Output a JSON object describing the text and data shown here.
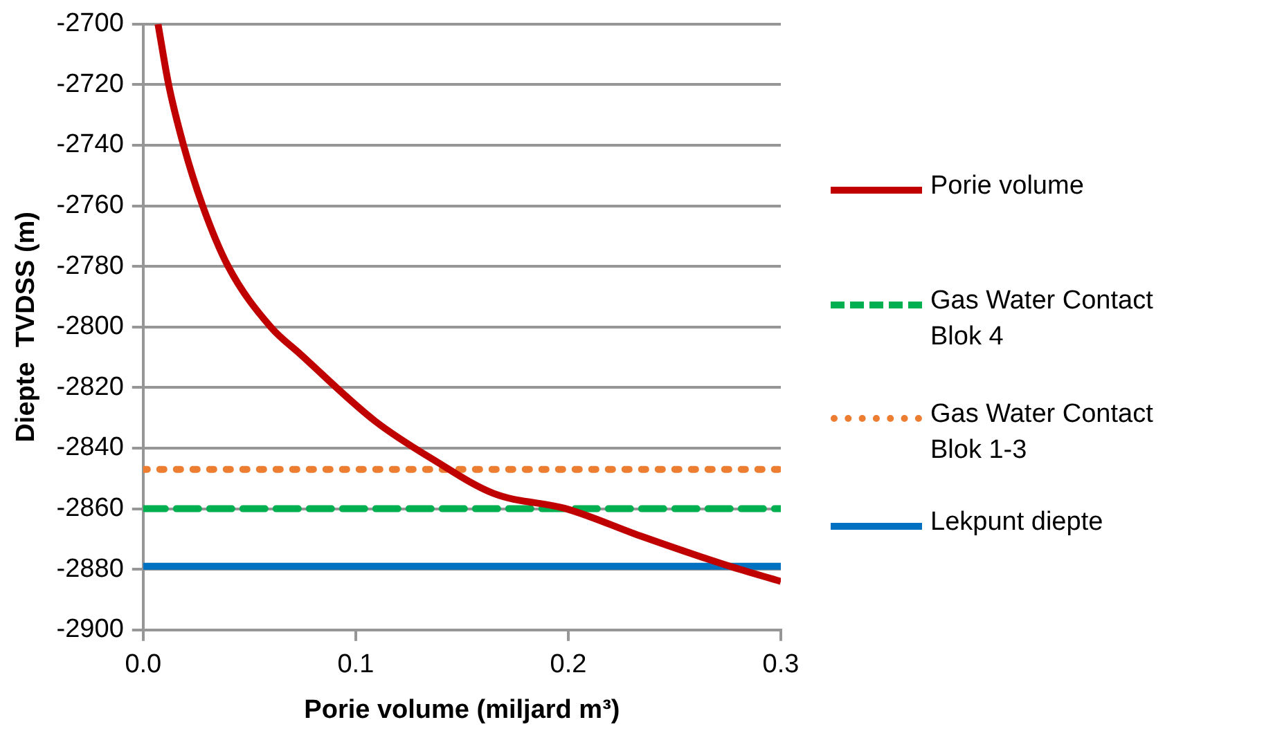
{
  "chart_data": {
    "type": "line",
    "xlabel": "Porie volume (miljard m³)",
    "ylabel": "Diepte  TVDSS (m)",
    "xlim": [
      0,
      0.3
    ],
    "xticks": [
      {
        "value": 0,
        "label": "0.0"
      },
      0.1,
      0.2,
      0.3
    ],
    "ylim": [
      -2900,
      -2700
    ],
    "yticks": [
      -2900,
      -2880,
      -2860,
      -2840,
      -2820,
      -2800,
      -2780,
      -2760,
      -2740,
      -2720,
      -2700
    ],
    "grid": "y",
    "legend": "right",
    "marker": "none",
    "series": [
      {
        "name": "Porie volume",
        "color": "#c00000",
        "line_style": "solid",
        "x": [
          0.007,
          0.012,
          0.019,
          0.028,
          0.04,
          0.06,
          0.074,
          0.109,
          0.137,
          0.165,
          0.199,
          0.234,
          0.276,
          0.3
        ],
        "values": [
          -2700,
          -2720,
          -2740,
          -2760,
          -2780,
          -2800,
          -2809,
          -2831,
          -2844,
          -2855,
          -2860,
          -2869,
          -2879,
          -2884
        ]
      },
      {
        "name": "Gas Water Contact Blok 4",
        "color": "#00b050",
        "line_style": "dashed",
        "x": [
          0,
          0.3
        ],
        "values": [
          -2860,
          -2860
        ]
      },
      {
        "name": "Gas Water Contact Blok 1-3",
        "color": "#ed7d31",
        "line_style": "dotted",
        "x": [
          0,
          0.3
        ],
        "values": [
          -2847,
          -2847
        ]
      },
      {
        "name": "Lekpunt diepte",
        "color": "#0070c0",
        "line_style": "solid",
        "x": [
          0,
          0.3
        ],
        "values": [
          -2879,
          -2879
        ]
      }
    ]
  }
}
